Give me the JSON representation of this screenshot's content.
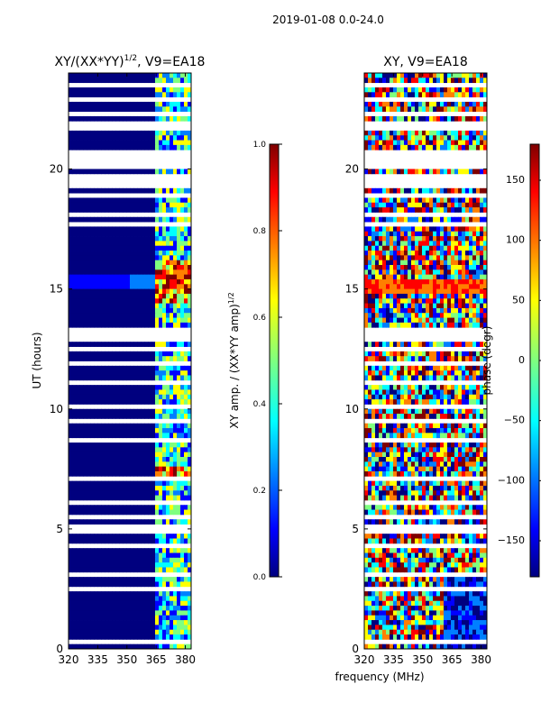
{
  "figure": {
    "suptitle": "2019-01-08 0.0-24.0",
    "xlabel": "frequency (MHz)"
  },
  "chart_data": [
    {
      "type": "heatmap",
      "title": "XY/(XX*YY)^1/2, V9=EA18",
      "title_main": "XY/(XX*YY)",
      "title_exp": "1/2",
      "title_suffix": ", V9=EA18",
      "xlabel": "frequency (MHz)",
      "ylabel": "UT (hours)",
      "xlim": [
        320,
        383
      ],
      "ylim": [
        0,
        24
      ],
      "xticks": [
        320,
        335,
        350,
        365,
        380
      ],
      "yticks": [
        0,
        5,
        10,
        15,
        20
      ],
      "colorbar": {
        "label": "XY amp. / (XX*YY amp)^1/2",
        "label_main": "XY amp. / (XX*YY amp)",
        "label_exp": "1/2",
        "range": [
          0,
          1
        ],
        "ticks": [
          "0.0",
          "0.2",
          "0.4",
          "0.6",
          "0.8",
          "1.0"
        ]
      }
    },
    {
      "type": "heatmap",
      "title": "XY, V9=EA18",
      "xlabel": "frequency (MHz)",
      "xlim": [
        320,
        383
      ],
      "ylim": [
        0,
        24
      ],
      "xticks": [
        320,
        335,
        350,
        365,
        380
      ],
      "yticks": [
        0,
        5,
        10,
        15,
        20
      ],
      "colorbar": {
        "label": "phase (degr)",
        "range": [
          -180,
          180
        ],
        "ticks": [
          "150",
          "100",
          "50",
          "0",
          "−50",
          "−100",
          "−150"
        ]
      }
    }
  ],
  "colors": {
    "jet": [
      "#00007f",
      "#0000ff",
      "#007fff",
      "#00ffff",
      "#7fff7f",
      "#ffff00",
      "#ff7f00",
      "#ff0000",
      "#7f0000"
    ],
    "background": "#ffffff"
  }
}
